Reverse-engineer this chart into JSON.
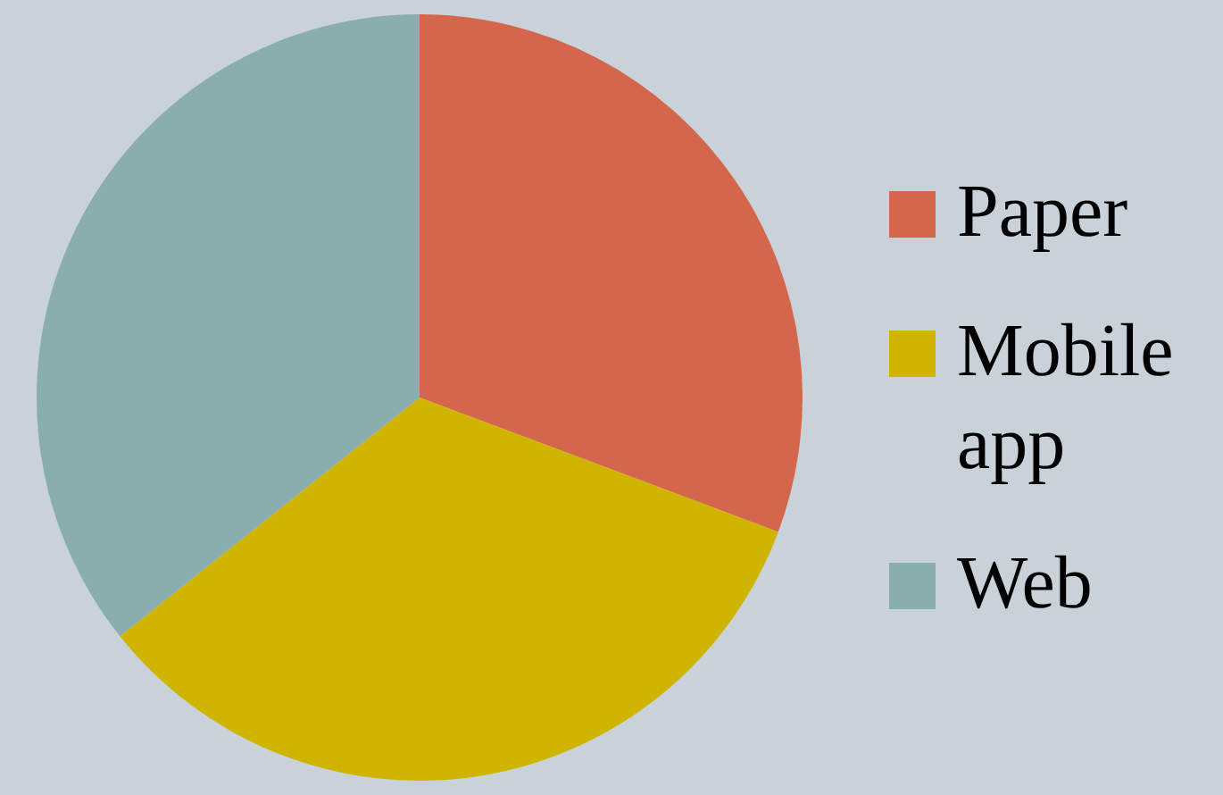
{
  "chart_data": {
    "type": "pie",
    "categories": [
      "Paper",
      "Mobile app",
      "Web"
    ],
    "values": [
      30.7,
      33.6,
      35.7
    ],
    "colors": [
      "#d4674b",
      "#cfb500",
      "#8aadad"
    ],
    "legend": "right"
  }
}
